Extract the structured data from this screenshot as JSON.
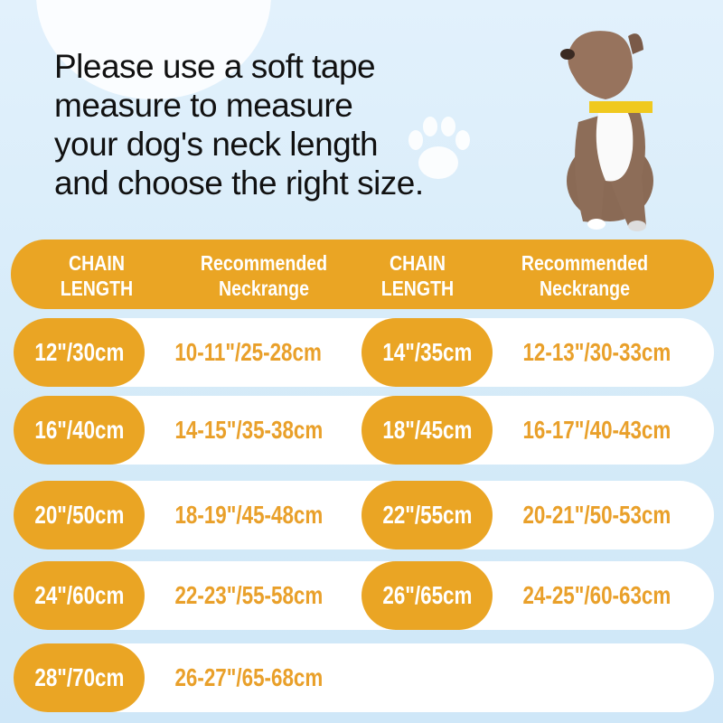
{
  "title_lines": [
    "Please use a soft tape",
    "measure to measure",
    "your dog's neck length",
    "and choose the right size."
  ],
  "header": {
    "chain_length": [
      "CHAIN",
      "LENGTH"
    ],
    "neckrange": [
      "Recommended",
      "Neckrange"
    ]
  },
  "rows": [
    [
      {
        "chain": "12\"/30cm",
        "neck": "10-11\"/25-28cm"
      },
      {
        "chain": "14\"/35cm",
        "neck": "12-13\"/30-33cm"
      }
    ],
    [
      {
        "chain": "16\"/40cm",
        "neck": "14-15\"/35-38cm"
      },
      {
        "chain": "18\"/45cm",
        "neck": "16-17\"/40-43cm"
      }
    ],
    [
      {
        "chain": "20\"/50cm",
        "neck": "18-19\"/45-48cm"
      },
      {
        "chain": "22\"/55cm",
        "neck": "20-21\"/50-53cm"
      }
    ],
    [
      {
        "chain": "24\"/60cm",
        "neck": "22-23\"/55-58cm"
      },
      {
        "chain": "26\"/65cm",
        "neck": "24-25\"/60-63cm"
      }
    ],
    [
      {
        "chain": "28\"/70cm",
        "neck": "26-27\"/65-68cm"
      }
    ]
  ],
  "colors": {
    "accent": "#eaa524",
    "range_text": "#e9a02a",
    "background": "#dceefb"
  },
  "icons": [
    "paw-print-icon",
    "dog-photo"
  ]
}
